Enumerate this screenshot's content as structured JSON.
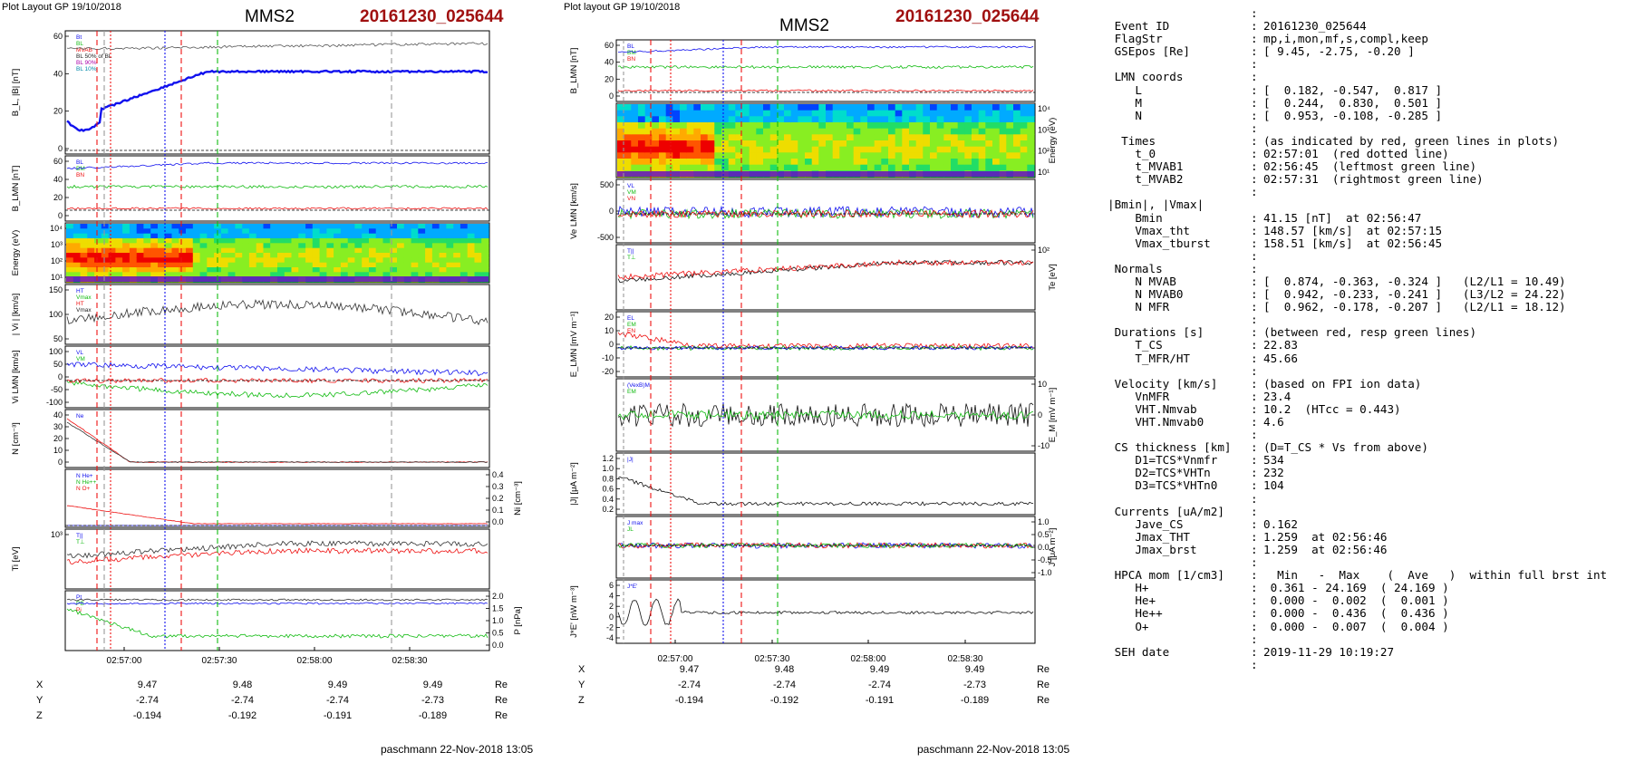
{
  "left": {
    "header": "Plot Layout GP 19/10/2018",
    "spacecraft": "MMS2",
    "event": "20161230_025644",
    "footer": "paschmann 22-Nov-2018 13:05"
  },
  "middle": {
    "header": "Plot layout GP 19/10/2018",
    "spacecraft": "MMS2",
    "event": "20161230_025644",
    "footer": "paschmann 22-Nov-2018 13:05"
  },
  "time_ticks": [
    "02:57:00",
    "02:57:30",
    "02:58:00",
    "02:58:30"
  ],
  "coords": {
    "unit": "Re",
    "rows": [
      {
        "label": "X",
        "values": [
          "9.47",
          "9.48",
          "9.49",
          "9.49"
        ]
      },
      {
        "label": "Y",
        "values": [
          "-2.74",
          "-2.74",
          "-2.74",
          "-2.73"
        ]
      },
      {
        "label": "Z",
        "values": [
          "-0.194",
          "-0.192",
          "-0.191",
          "-0.189"
        ]
      }
    ]
  },
  "colors": {
    "event": "#a01010",
    "red": "#ee1111",
    "green": "#11bb11",
    "blue": "#1111ee"
  },
  "chart_data": [
    {
      "type": "line",
      "title": "MMS2 20161230_025644",
      "panels": [
        {
          "ylabel": "B_L, |B| [nT]",
          "yticks": [
            "60",
            "40",
            "20",
            "0"
          ],
          "legend": [
            "Bt",
            "BL",
            "MVAB",
            "BL 50% of BL",
            "BL 90%",
            "BL 10%"
          ]
        },
        {
          "ylabel": "B_LMN [nT]",
          "yticks": [
            "60",
            "40",
            "20",
            "0"
          ],
          "legend": [
            "BL",
            "BM",
            "BN"
          ]
        },
        {
          "ylabel": "Energy (eV)",
          "yticks": [
            "10⁴",
            "10³",
            "10²",
            "10¹"
          ],
          "legend": []
        },
        {
          "ylabel": "| Vi | [km/s]",
          "yticks": [
            "150",
            "100",
            "50"
          ],
          "legend": [
            "HT",
            "Vmax",
            "HT",
            "Vmax"
          ]
        },
        {
          "ylabel": "Vi LMN [km/s]",
          "yticks": [
            "100",
            "50",
            "0",
            "-50",
            "-100"
          ],
          "legend": [
            "VL",
            "VM"
          ]
        },
        {
          "ylabel": "N [cm⁻³]",
          "yticks": [
            "40",
            "30",
            "20",
            "10",
            "0"
          ],
          "legend": [
            "Ne"
          ]
        },
        {
          "ylabel": "Ni [cm⁻³]",
          "yticks": [
            "0.4",
            "0.3",
            "0.2",
            "0.1",
            "0.0"
          ],
          "legend": [
            "N He+",
            "N He++",
            "N O+"
          ]
        },
        {
          "ylabel": "Ti [eV]",
          "yticks": [
            "10³"
          ],
          "legend": [
            "T||",
            "T⊥"
          ]
        },
        {
          "ylabel": "P [nPa]",
          "yticks": [
            "2.0",
            "1.5",
            "1.0",
            "0.5",
            "0.0"
          ],
          "legend": [
            "Pt",
            "PB",
            "Pi"
          ]
        }
      ]
    },
    {
      "type": "line",
      "title": "MMS2 20161230_025644",
      "panels": [
        {
          "ylabel": "B_LMN [nT]",
          "yticks": [
            "60",
            "40",
            "20",
            "0"
          ],
          "legend": [
            "BL",
            "BM",
            "BN"
          ]
        },
        {
          "ylabel": "Energy (eV)",
          "yticks": [
            "10⁴",
            "10³",
            "10²",
            "10¹"
          ],
          "legend": []
        },
        {
          "ylabel": "Ve LMN [km/s]",
          "yticks": [
            "500",
            "0",
            "-500"
          ],
          "legend": [
            "VL",
            "VM",
            "VN"
          ]
        },
        {
          "ylabel": "Te [eV]",
          "yticks": [
            "10²"
          ],
          "legend": [
            "T||",
            "T⊥"
          ]
        },
        {
          "ylabel": "E_LMN [mV m⁻¹]",
          "yticks": [
            "20",
            "10",
            "0",
            "-10",
            "-20"
          ],
          "legend": [
            "EL",
            "EM",
            "EN"
          ]
        },
        {
          "ylabel": "E_M [mV m⁻¹]",
          "yticks": [
            "10",
            "0",
            "-10"
          ],
          "legend": [
            "(VexB)M",
            "EM"
          ]
        },
        {
          "ylabel": "|J| [μA m⁻²]",
          "yticks": [
            "1.2",
            "1.0",
            "0.8",
            "0.6",
            "0.4",
            "0.2"
          ],
          "legend": [
            "|J|"
          ]
        },
        {
          "ylabel": "J [μA m⁻²]",
          "yticks": [
            "1.0",
            "0.5",
            "0.0",
            "-0.5",
            "-1.0"
          ],
          "legend": [
            "J max",
            "JL"
          ]
        },
        {
          "ylabel": "J*E' [nW m⁻³]",
          "yticks": [
            "6",
            "4",
            "2",
            "0",
            "-2",
            "-4"
          ],
          "legend": [
            "J*E'"
          ]
        }
      ]
    }
  ],
  "info": [
    {
      "k": "",
      "c": ":",
      "v": ""
    },
    {
      "k": " Event ID",
      "c": ":",
      "v": "20161230_025644"
    },
    {
      "k": " FlagStr",
      "c": ":",
      "v": "mp,i,mon,mf,s,compl,keep"
    },
    {
      "k": " GSEpos [Re]",
      "c": ":",
      "v": "[ 9.45, -2.75, -0.20 ]"
    },
    {
      "k": "",
      "c": ":",
      "v": ""
    },
    {
      "k": " LMN coords",
      "c": ":",
      "v": ""
    },
    {
      "k": "    L",
      "c": ":",
      "v": "[  0.182, -0.547,  0.817 ]"
    },
    {
      "k": "    M",
      "c": ":",
      "v": "[  0.244,  0.830,  0.501 ]"
    },
    {
      "k": "    N",
      "c": ":",
      "v": "[  0.953, -0.108, -0.285 ]"
    },
    {
      "k": "",
      "c": ":",
      "v": ""
    },
    {
      "k": "  Times",
      "c": ":",
      "v": "(as indicated by red, green lines in plots)"
    },
    {
      "k": "    t_0",
      "c": ":",
      "v": "02:57:01  (red dotted line)"
    },
    {
      "k": "    t_MVAB1",
      "c": ":",
      "v": "02:56:45  (leftmost green line)"
    },
    {
      "k": "    t_MVAB2",
      "c": ":",
      "v": "02:57:31  (rightmost green line)"
    },
    {
      "k": "",
      "c": ":",
      "v": ""
    },
    {
      "k": "|Bmin|, |Vmax|",
      "c": "",
      "v": ""
    },
    {
      "k": "    Bmin",
      "c": ":",
      "v": "41.15 [nT]  at 02:56:47"
    },
    {
      "k": "    Vmax_tht",
      "c": ":",
      "v": "148.57 [km/s]  at 02:57:15"
    },
    {
      "k": "    Vmax_tburst",
      "c": ":",
      "v": "158.51 [km/s]  at 02:56:45"
    },
    {
      "k": "",
      "c": ":",
      "v": ""
    },
    {
      "k": " Normals",
      "c": ":",
      "v": ""
    },
    {
      "k": "    N MVAB",
      "c": ":",
      "v": "[  0.874, -0.363, -0.324 ]   (L2/L1 = 10.49)"
    },
    {
      "k": "    N MVAB0",
      "c": ":",
      "v": "[  0.942, -0.233, -0.241 ]   (L3/L2 = 24.22)"
    },
    {
      "k": "    N MFR",
      "c": ":",
      "v": "[  0.962, -0.178, -0.207 ]   (L2/L1 = 18.12)"
    },
    {
      "k": "",
      "c": ":",
      "v": ""
    },
    {
      "k": " Durations [s]",
      "c": ":",
      "v": "(between red, resp green lines)"
    },
    {
      "k": "    T_CS",
      "c": ":",
      "v": "22.83"
    },
    {
      "k": "    T_MFR/HT",
      "c": ":",
      "v": "45.66"
    },
    {
      "k": "",
      "c": ":",
      "v": ""
    },
    {
      "k": " Velocity [km/s]",
      "c": ":",
      "v": "(based on FPI ion data)"
    },
    {
      "k": "    VnMFR",
      "c": ":",
      "v": "23.4"
    },
    {
      "k": "    VHT.Nmvab",
      "c": ":",
      "v": "10.2  (HTcc = 0.443)"
    },
    {
      "k": "    VHT.Nmvab0",
      "c": ":",
      "v": "4.6"
    },
    {
      "k": "",
      "c": ":",
      "v": ""
    },
    {
      "k": " CS thickness [km]",
      "c": ":",
      "v": "(D=T_CS * Vs from above)"
    },
    {
      "k": "    D1=TCS*Vnmfr",
      "c": ":",
      "v": "534"
    },
    {
      "k": "    D2=TCS*VHTn",
      "c": ":",
      "v": "232"
    },
    {
      "k": "    D3=TCS*VHTn0",
      "c": ":",
      "v": "104"
    },
    {
      "k": "",
      "c": ":",
      "v": ""
    },
    {
      "k": " Currents [uA/m2]",
      "c": ":",
      "v": ""
    },
    {
      "k": "    Jave_CS",
      "c": ":",
      "v": "0.162"
    },
    {
      "k": "    Jmax_THT",
      "c": ":",
      "v": "1.259  at 02:56:46"
    },
    {
      "k": "    Jmax_brst",
      "c": ":",
      "v": "1.259  at 02:56:46"
    },
    {
      "k": "",
      "c": ":",
      "v": ""
    },
    {
      "k": " HPCA mom [1/cm3]",
      "c": ":",
      "v": "  Min   -  Max    (  Ave   )  within full brst int"
    },
    {
      "k": "    H+",
      "c": ":",
      "v": " 0.361 - 24.169  ( 24.169 )"
    },
    {
      "k": "    He+",
      "c": ":",
      "v": " 0.000 -  0.002  (  0.001 )"
    },
    {
      "k": "    He++",
      "c": ":",
      "v": " 0.000 -  0.436  (  0.436 )"
    },
    {
      "k": "    O+",
      "c": ":",
      "v": " 0.000 -  0.007  (  0.004 )"
    },
    {
      "k": "",
      "c": ":",
      "v": ""
    },
    {
      "k": " SEH date",
      "c": ":",
      "v": "2019-11-29 10:19:27"
    },
    {
      "k": "",
      "c": ":",
      "v": ""
    }
  ]
}
